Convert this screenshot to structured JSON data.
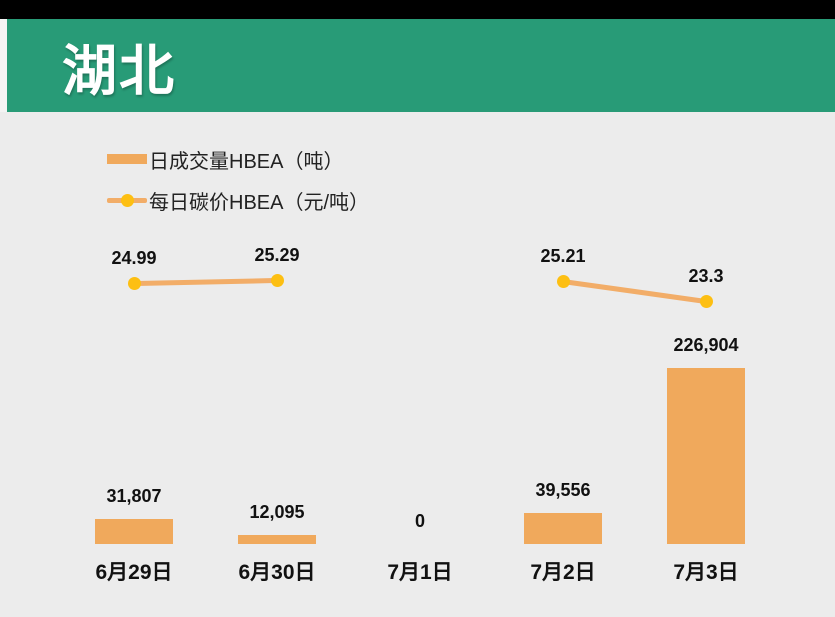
{
  "window": {
    "top_bar_color": "#000000",
    "background_color": "#ececec"
  },
  "header": {
    "title": "湖北",
    "banner_color": "#289b77",
    "text_color": "#ffffff"
  },
  "legend": {
    "items": [
      {
        "label": "日成交量HBEA（吨）",
        "swatch": "bar",
        "color": "#f0a95c"
      },
      {
        "label": "每日碳价HBEA（元/吨）",
        "swatch": "line",
        "color": "#f2ad68",
        "marker_color": "#fdbf12"
      }
    ]
  },
  "chart_data": {
    "type": "combo-bar-line",
    "categories": [
      "6月29日",
      "6月30日",
      "7月1日",
      "7月2日",
      "7月3日"
    ],
    "series": [
      {
        "name": "日成交量HBEA（吨）",
        "type": "bar",
        "color": "#f0a95c",
        "values": [
          31807,
          12095,
          0,
          39556,
          226904
        ],
        "labels": [
          "31,807",
          "12,095",
          "0",
          "39,556",
          "226,904"
        ]
      },
      {
        "name": "每日碳价HBEA（元/吨）",
        "type": "line",
        "color": "#f2ad68",
        "marker_color": "#fdbf12",
        "values": [
          24.99,
          25.29,
          null,
          25.21,
          23.3
        ],
        "labels": [
          "24.99",
          "25.29",
          null,
          "25.21",
          "23.3"
        ]
      }
    ],
    "bar_axis": {
      "min": 0,
      "max": 226904,
      "visible": false
    },
    "line_axis": {
      "min": 23.3,
      "max": 25.29,
      "visible": false
    },
    "grid": false,
    "data_labels": true,
    "legend_position": "top-left"
  }
}
